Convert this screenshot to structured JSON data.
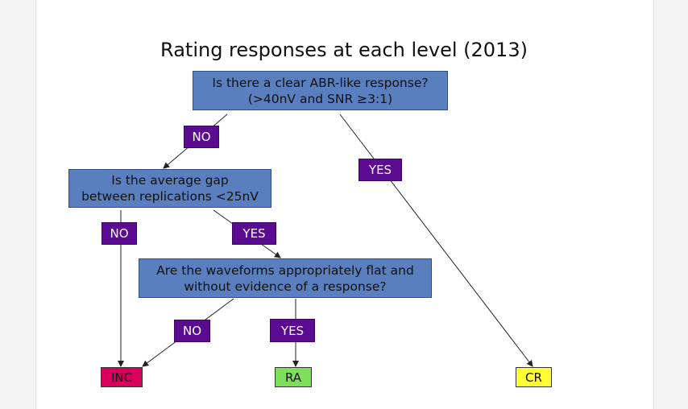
{
  "title": "Rating responses at each level (2013)",
  "nodes": {
    "q1": {
      "line1": "Is there a clear ABR-like response?",
      "line2": "(>40nV and SNR ≥3:1)"
    },
    "q2": {
      "line1": "Is the average gap",
      "line2": "between replications <25nV"
    },
    "q3": {
      "line1": "Are the waveforms appropriately flat and",
      "line2": "without evidence of a response?"
    }
  },
  "labels": {
    "q1_no": "NO",
    "q1_yes": "YES",
    "q2_no": "NO",
    "q2_yes": "YES",
    "q3_no": "NO",
    "q3_yes": "YES"
  },
  "outcomes": {
    "inc": {
      "label": "INC",
      "color": "#d9005b"
    },
    "ra": {
      "label": "RA",
      "color": "#7ee05a"
    },
    "cr": {
      "label": "CR",
      "color": "#ffff33"
    }
  },
  "colors": {
    "question_fill": "#5a7fbf",
    "branch_label_fill": "#5b0b8f"
  }
}
